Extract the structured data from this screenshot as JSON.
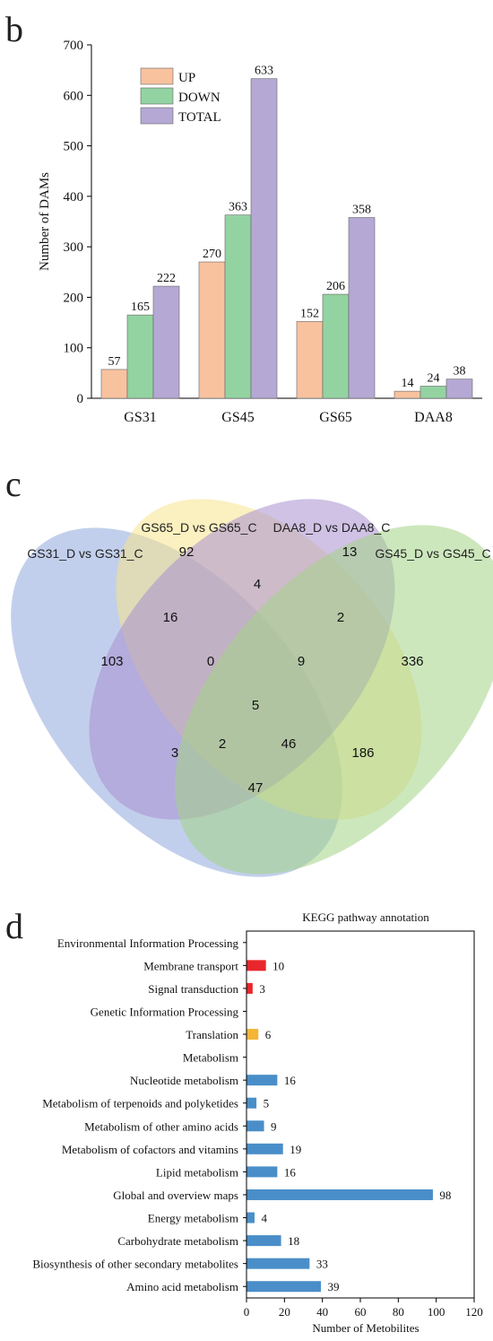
{
  "panels": {
    "b": "b",
    "c": "c",
    "d": "d"
  },
  "chart_data": [
    {
      "type": "bar",
      "panel": "b",
      "ylabel": "Number of DAMs",
      "ylim": [
        0,
        700
      ],
      "yticks": [
        0,
        100,
        200,
        300,
        400,
        500,
        600,
        700
      ],
      "categories": [
        "GS31",
        "GS45",
        "GS65",
        "DAA8"
      ],
      "legend_position": "top-left",
      "series": [
        {
          "name": "UP",
          "color": "#f8c29f",
          "values": [
            57,
            270,
            152,
            14
          ]
        },
        {
          "name": "DOWN",
          "color": "#93d3a2",
          "values": [
            165,
            363,
            206,
            24
          ]
        },
        {
          "name": "TOTAL",
          "color": "#b6a8d4",
          "values": [
            222,
            633,
            358,
            38
          ]
        }
      ]
    },
    {
      "type": "venn",
      "panel": "c",
      "sets": [
        {
          "name": "GS31_D vs GS31_C",
          "color": "#8fa8dc"
        },
        {
          "name": "GS65_D vs GS65_C",
          "color": "#f8e48c"
        },
        {
          "name": "DAA8_D vs DAA8_C",
          "color": "#a88fd0"
        },
        {
          "name": "GS45_D vs GS45_C",
          "color": "#a4d486"
        }
      ],
      "regions": [
        {
          "sets": [
            "GS31"
          ],
          "value": 103
        },
        {
          "sets": [
            "GS65"
          ],
          "value": 92
        },
        {
          "sets": [
            "DAA8"
          ],
          "value": 13
        },
        {
          "sets": [
            "GS45"
          ],
          "value": 336
        },
        {
          "sets": [
            "GS31",
            "GS65"
          ],
          "value": 16
        },
        {
          "sets": [
            "GS65",
            "DAA8"
          ],
          "value": 4
        },
        {
          "sets": [
            "DAA8",
            "GS45"
          ],
          "value": 2
        },
        {
          "sets": [
            "GS31",
            "GS65",
            "DAA8"
          ],
          "value": 0
        },
        {
          "sets": [
            "GS65",
            "DAA8",
            "GS45"
          ],
          "value": 9
        },
        {
          "sets": [
            "GS31",
            "GS65",
            "DAA8",
            "GS45"
          ],
          "value": 5
        },
        {
          "sets": [
            "GS31",
            "DAA8"
          ],
          "value": 3
        },
        {
          "sets": [
            "GS65",
            "GS45"
          ],
          "value": 186
        },
        {
          "sets": [
            "GS31",
            "DAA8",
            "GS45"
          ],
          "value": 2
        },
        {
          "sets": [
            "GS31",
            "GS65",
            "GS45"
          ],
          "value": 46
        },
        {
          "sets": [
            "GS31",
            "GS45"
          ],
          "value": 47
        }
      ]
    },
    {
      "type": "bar",
      "orientation": "horizontal",
      "panel": "d",
      "title": "KEGG pathway annotation",
      "xlabel": "Number of Metobilites",
      "xlim": [
        0,
        120
      ],
      "xticks": [
        0,
        20,
        40,
        60,
        80,
        100,
        120
      ],
      "grid": false,
      "rows": [
        {
          "label": "Environmental Information Processing",
          "value": null,
          "color": null
        },
        {
          "label": "Membrane transport",
          "value": 10,
          "color": "#e8262b"
        },
        {
          "label": "Signal transduction",
          "value": 3,
          "color": "#e8262b"
        },
        {
          "label": "Genetic Information Processing",
          "value": null,
          "color": null
        },
        {
          "label": "Translation",
          "value": 6,
          "color": "#f5b536"
        },
        {
          "label": "Metabolism",
          "value": null,
          "color": null
        },
        {
          "label": "Nucleotide metabolism",
          "value": 16,
          "color": "#4a8ec9"
        },
        {
          "label": "Metabolism of terpenoids and polyketides",
          "value": 5,
          "color": "#4a8ec9"
        },
        {
          "label": "Metabolism of other amino acids",
          "value": 9,
          "color": "#4a8ec9"
        },
        {
          "label": "Metabolism of cofactors and vitamins",
          "value": 19,
          "color": "#4a8ec9"
        },
        {
          "label": "Lipid metabolism",
          "value": 16,
          "color": "#4a8ec9"
        },
        {
          "label": "Global and overview maps",
          "value": 98,
          "color": "#4a8ec9"
        },
        {
          "label": "Energy metabolism",
          "value": 4,
          "color": "#4a8ec9"
        },
        {
          "label": "Carbohydrate metabolism",
          "value": 18,
          "color": "#4a8ec9"
        },
        {
          "label": "Biosynthesis of other secondary metabolites",
          "value": 33,
          "color": "#4a8ec9"
        },
        {
          "label": "Amino acid metabolism",
          "value": 39,
          "color": "#4a8ec9"
        }
      ]
    }
  ]
}
